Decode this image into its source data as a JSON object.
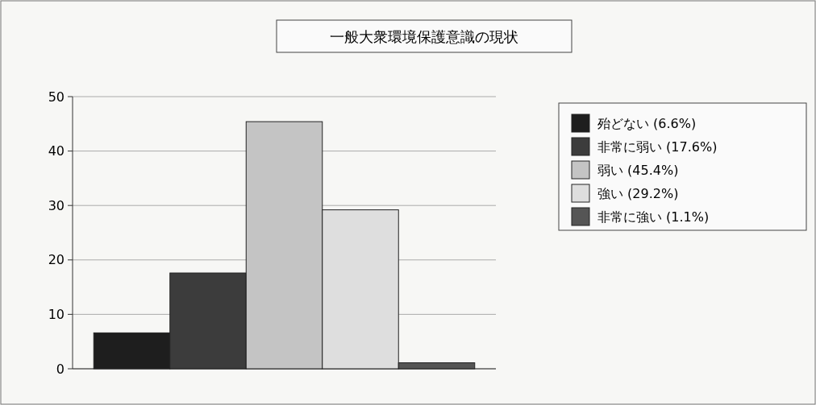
{
  "chart_data": {
    "type": "bar",
    "title": "一般大衆環境保護意識の現状",
    "categories": [
      null
    ],
    "series": [
      {
        "name": "殆どない (6.6%)",
        "color": "#1e1e1e",
        "values": [
          6.6
        ]
      },
      {
        "name": "非常に弱い (17.6%)",
        "color": "#3c3c3c",
        "values": [
          17.6
        ]
      },
      {
        "name": "弱い (45.4%)",
        "color": "#c4c4c4",
        "values": [
          45.4
        ]
      },
      {
        "name": "強い (29.2%)",
        "color": "#dedede",
        "values": [
          29.2
        ]
      },
      {
        "name": "非常に強い (1.1%)",
        "color": "#555555",
        "values": [
          1.1
        ]
      }
    ],
    "ylim": [
      0,
      50
    ],
    "yticks": [
      0,
      10,
      20,
      30,
      40,
      50
    ],
    "grid": "y",
    "legend": "right"
  }
}
